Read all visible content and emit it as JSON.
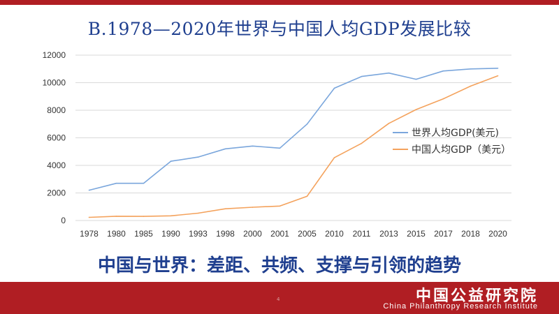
{
  "slide": {
    "title": "B.1978—2020年世界与中国人均GDP发展比较",
    "subtitle": "中国与世界：差距、共频、支撑与引领的趋势",
    "page_number": "4"
  },
  "footer": {
    "org_cn": "中国公益研究院",
    "org_en": "China Philanthropy Research Institute",
    "color": "#b01e23"
  },
  "chart_data": {
    "type": "line",
    "categories": [
      "1978",
      "1980",
      "1985",
      "1990",
      "1993",
      "1998",
      "2000",
      "2001",
      "2005",
      "2010",
      "2011",
      "2013",
      "2015",
      "2017",
      "2018",
      "2020"
    ],
    "ylim": [
      0,
      12000
    ],
    "yticks": [
      "0",
      "2000",
      "4000",
      "6000",
      "8000",
      "10000",
      "12000"
    ],
    "grid": true,
    "legend_position": "right",
    "series": [
      {
        "name": "世界人均GDP(美元)",
        "color": "#7aa6dc",
        "values": [
          2200,
          2700,
          2700,
          4300,
          4600,
          5200,
          5400,
          5250,
          7000,
          9600,
          10450,
          10700,
          10250,
          10850,
          11000,
          11050
        ]
      },
      {
        "name": "中国人均GDP（美元）",
        "color": "#f4a25c",
        "values": [
          230,
          310,
          300,
          340,
          530,
          850,
          960,
          1050,
          1760,
          4560,
          5600,
          7050,
          8050,
          8830,
          9750,
          10500
        ]
      }
    ]
  }
}
